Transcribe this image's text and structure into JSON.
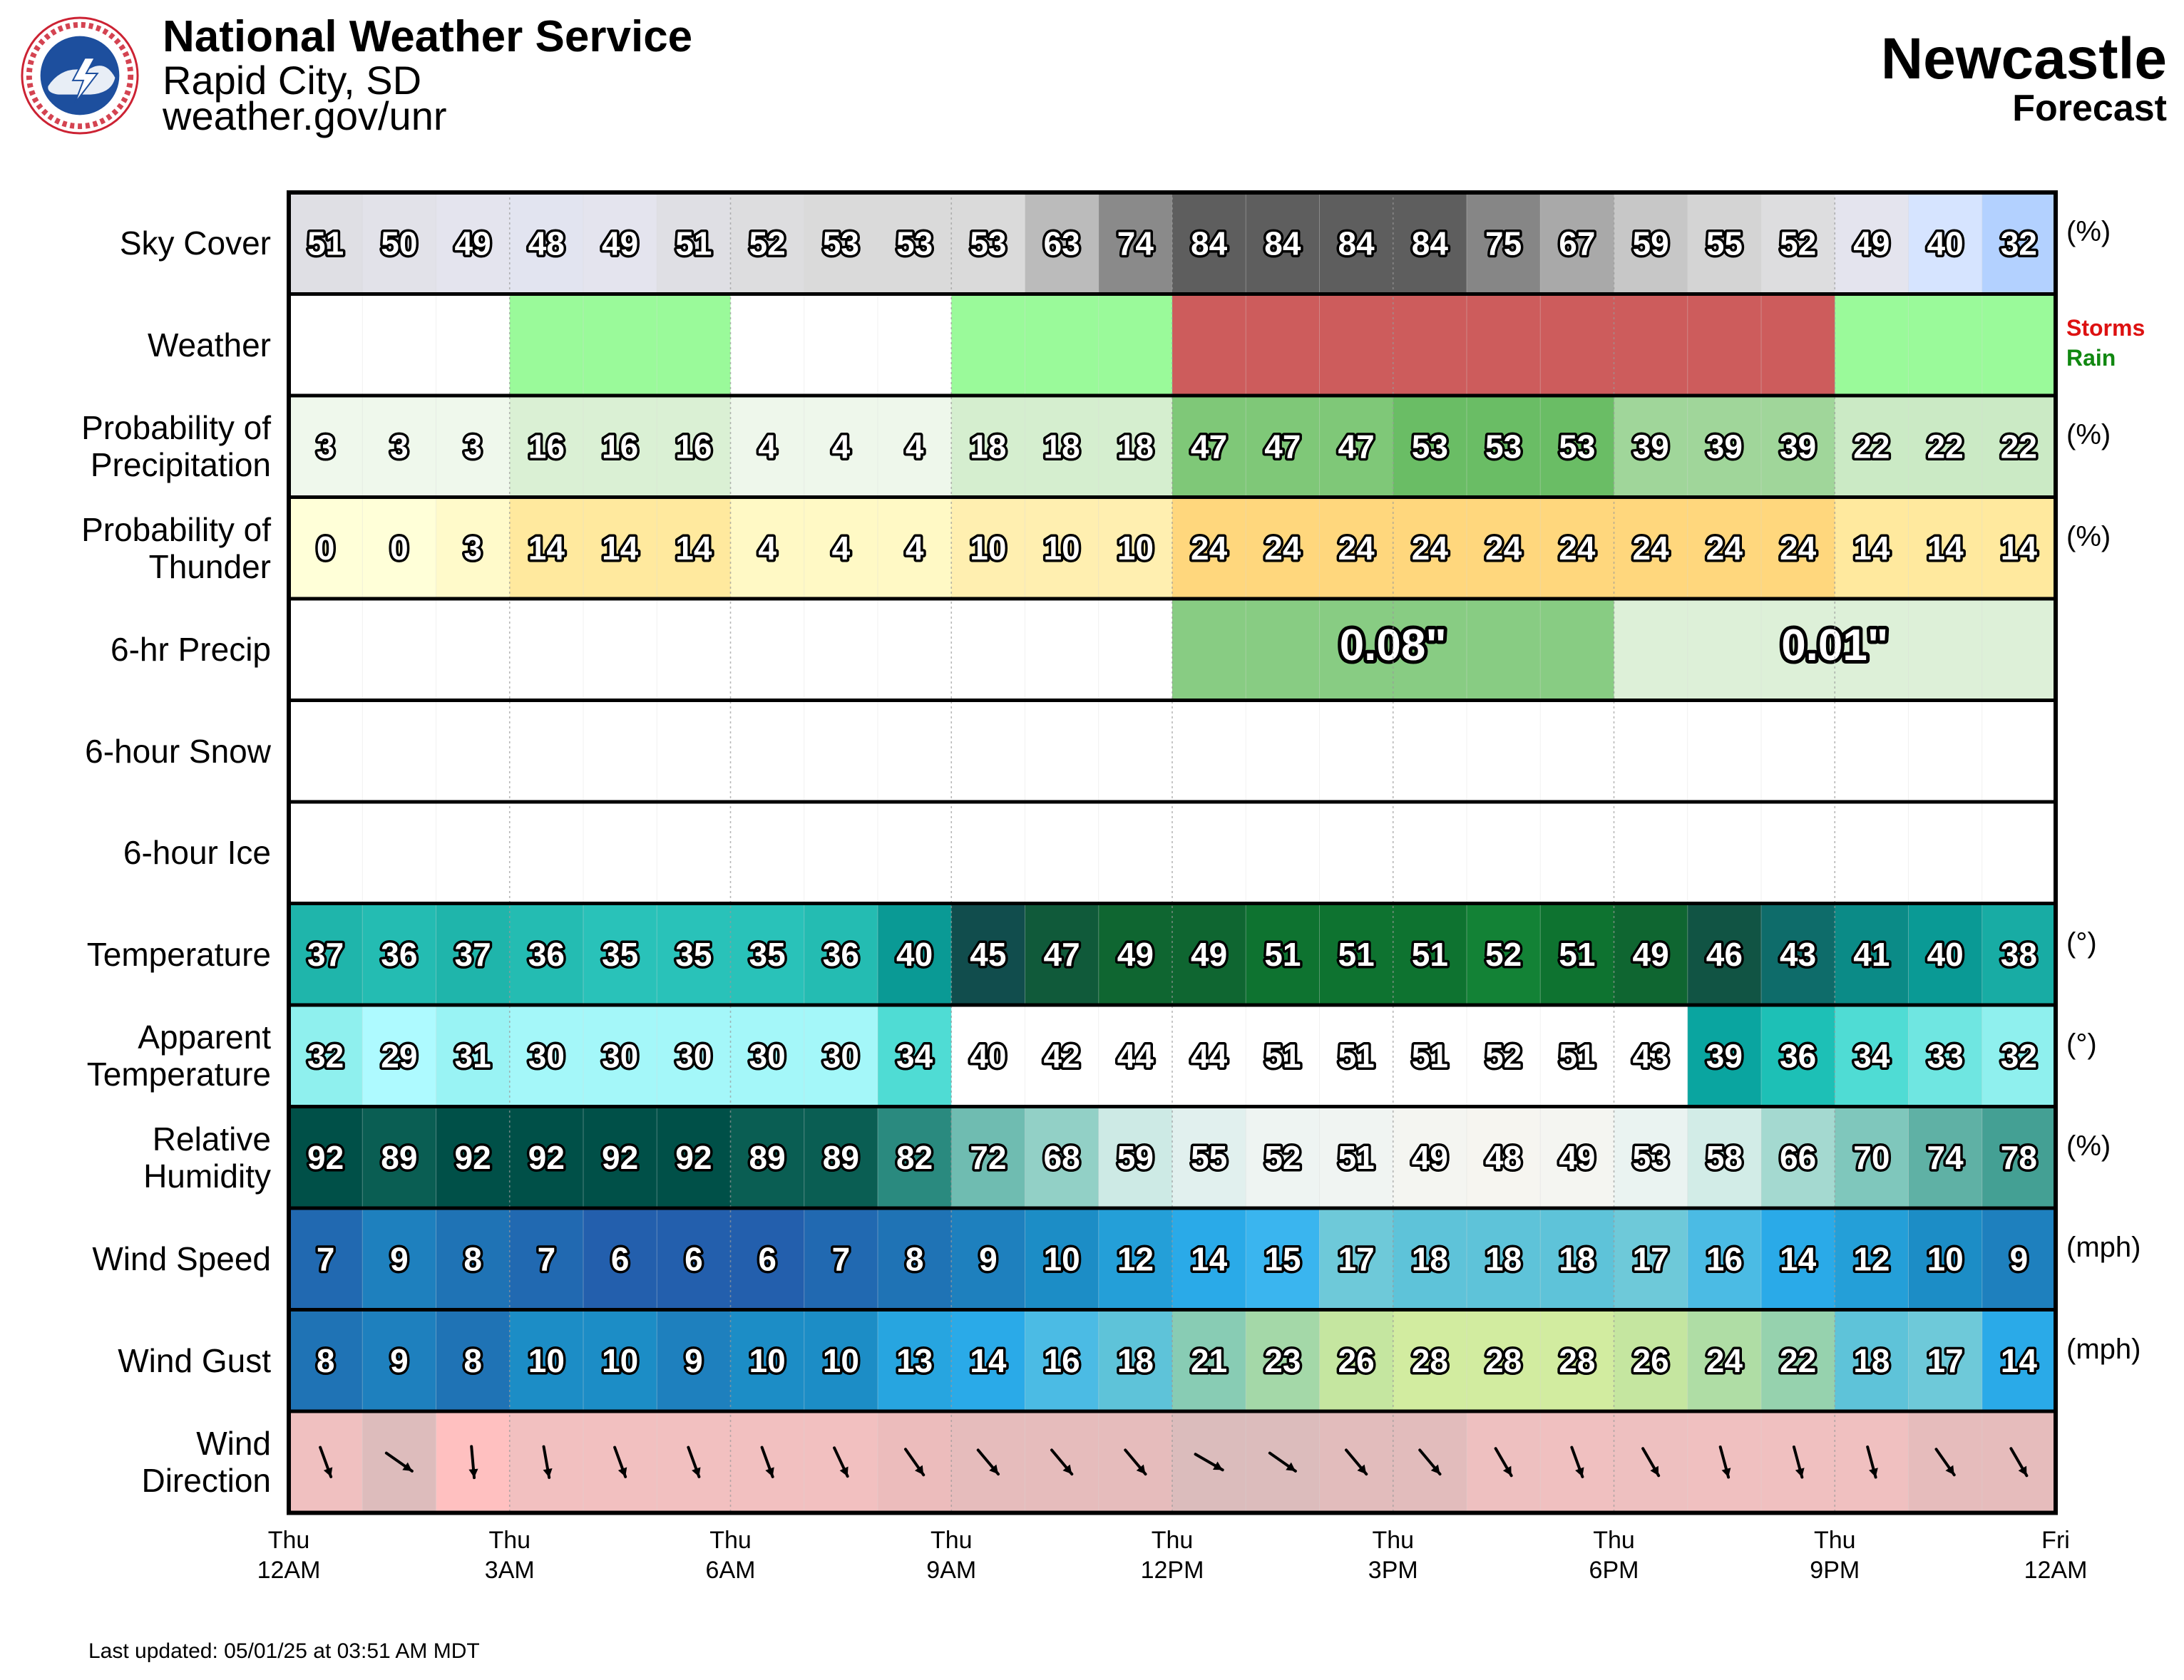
{
  "header": {
    "office_name": "National Weather Service",
    "office_location": "Rapid City, SD",
    "office_url": "weather.gov/unr",
    "location_name": "Newcastle",
    "product_name": "Forecast",
    "logo_icon": "nws-logo-icon"
  },
  "legend": {
    "storms": "Storms",
    "rain": "Rain",
    "storms_color": "#dd1111",
    "rain_color": "#118811"
  },
  "footer": {
    "last_updated": "Last updated: 05/01/25 at 03:51 AM MDT"
  },
  "chart_data": {
    "type": "table",
    "x_ticks": [
      {
        "day": "Thu",
        "time": "12AM"
      },
      {
        "day": "Thu",
        "time": "3AM"
      },
      {
        "day": "Thu",
        "time": "6AM"
      },
      {
        "day": "Thu",
        "time": "9AM"
      },
      {
        "day": "Thu",
        "time": "12PM"
      },
      {
        "day": "Thu",
        "time": "3PM"
      },
      {
        "day": "Thu",
        "time": "6PM"
      },
      {
        "day": "Thu",
        "time": "9PM"
      },
      {
        "day": "Fri",
        "time": "12AM"
      }
    ],
    "rows": [
      {
        "label": [
          "Sky Cover"
        ],
        "unit": "(%)",
        "kind": "sky",
        "values": [
          51,
          50,
          49,
          48,
          49,
          51,
          52,
          53,
          53,
          53,
          63,
          74,
          84,
          84,
          84,
          84,
          75,
          67,
          59,
          55,
          52,
          49,
          40,
          32
        ]
      },
      {
        "label": [
          "Weather"
        ],
        "unit": "",
        "kind": "weather",
        "values": [
          "",
          "",
          "",
          "Rain",
          "Rain",
          "Rain",
          "",
          "",
          "",
          "Rain",
          "Rain",
          "Rain",
          "Storms",
          "Storms",
          "Storms",
          "Storms",
          "Storms",
          "Storms",
          "Storms",
          "Storms",
          "Storms",
          "Rain",
          "Rain",
          "Rain"
        ]
      },
      {
        "label": [
          "Probability of",
          "Precipitation"
        ],
        "unit": "(%)",
        "kind": "pop",
        "values": [
          3,
          3,
          3,
          16,
          16,
          16,
          4,
          4,
          4,
          18,
          18,
          18,
          47,
          47,
          47,
          53,
          53,
          53,
          39,
          39,
          39,
          22,
          22,
          22
        ]
      },
      {
        "label": [
          "Probability of",
          "Thunder"
        ],
        "unit": "(%)",
        "kind": "thunder",
        "values": [
          0,
          0,
          3,
          14,
          14,
          14,
          4,
          4,
          4,
          10,
          10,
          10,
          24,
          24,
          24,
          24,
          24,
          24,
          24,
          24,
          24,
          14,
          14,
          14
        ]
      },
      {
        "label": [
          "6-hr Precip"
        ],
        "unit": "",
        "kind": "qpf",
        "periods": [
          {
            "start": 0,
            "end": 12,
            "value": ""
          },
          {
            "start": 12,
            "end": 18,
            "value": "0.08\"",
            "amount": 0.08
          },
          {
            "start": 18,
            "end": 24,
            "value": "0.01\"",
            "amount": 0.01
          }
        ]
      },
      {
        "label": [
          "6-hour Snow"
        ],
        "unit": "",
        "kind": "empty"
      },
      {
        "label": [
          "6-hour Ice"
        ],
        "unit": "",
        "kind": "empty"
      },
      {
        "label": [
          "Temperature"
        ],
        "unit": "(°)",
        "kind": "temp",
        "values": [
          37,
          36,
          37,
          36,
          35,
          35,
          35,
          36,
          40,
          45,
          47,
          49,
          49,
          51,
          51,
          51,
          52,
          51,
          49,
          46,
          43,
          41,
          40,
          38
        ]
      },
      {
        "label": [
          "Apparent",
          "Temperature"
        ],
        "unit": "(°)",
        "kind": "apparent",
        "values": [
          32,
          29,
          31,
          30,
          30,
          30,
          30,
          30,
          34,
          40,
          42,
          44,
          44,
          51,
          51,
          51,
          52,
          51,
          43,
          39,
          36,
          34,
          33,
          32
        ]
      },
      {
        "label": [
          "Relative",
          "Humidity"
        ],
        "unit": "(%)",
        "kind": "rh",
        "values": [
          92,
          89,
          92,
          92,
          92,
          92,
          89,
          89,
          82,
          72,
          68,
          59,
          55,
          52,
          51,
          49,
          48,
          49,
          53,
          58,
          66,
          70,
          74,
          78
        ]
      },
      {
        "label": [
          "Wind Speed"
        ],
        "unit": "(mph)",
        "kind": "wind",
        "values": [
          7,
          9,
          8,
          7,
          6,
          6,
          6,
          7,
          8,
          9,
          10,
          12,
          14,
          15,
          17,
          18,
          18,
          18,
          17,
          16,
          14,
          12,
          10,
          9
        ]
      },
      {
        "label": [
          "Wind Gust"
        ],
        "unit": "(mph)",
        "kind": "wind",
        "values": [
          8,
          9,
          8,
          10,
          10,
          9,
          10,
          10,
          13,
          14,
          16,
          18,
          21,
          23,
          26,
          28,
          28,
          28,
          26,
          24,
          22,
          18,
          17,
          14
        ]
      },
      {
        "label": [
          "Wind",
          "Direction"
        ],
        "unit": "",
        "kind": "winddir",
        "directions_deg": [
          340,
          305,
          355,
          350,
          340,
          340,
          340,
          335,
          325,
          320,
          320,
          320,
          300,
          305,
          320,
          320,
          330,
          340,
          330,
          345,
          345,
          345,
          325,
          330
        ]
      }
    ]
  }
}
